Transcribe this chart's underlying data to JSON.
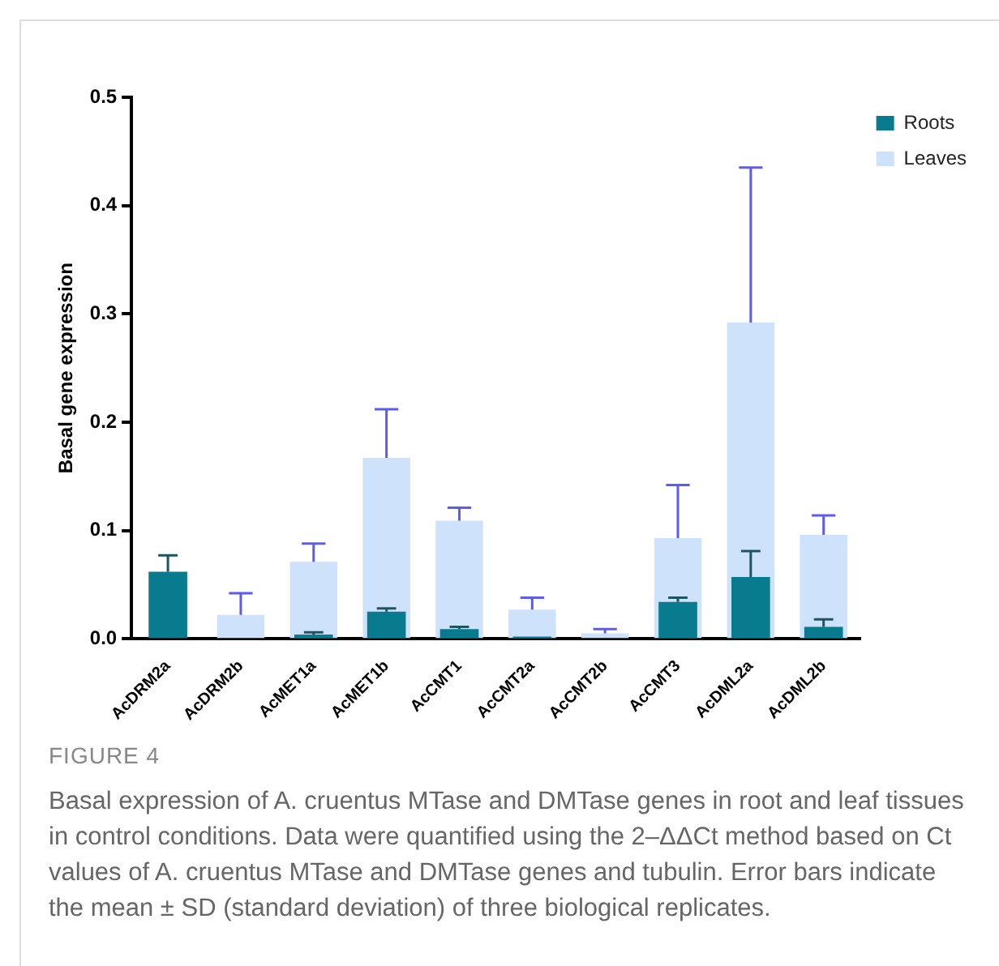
{
  "chart_data": {
    "type": "bar",
    "ylabel": "Basal gene expression",
    "categories": [
      "AcDRM2a",
      "AcDRM2b",
      "AcMET1a",
      "AcMET1b",
      "AcCMT1",
      "AcCMT2a",
      "AcCMT2b",
      "AcCMT3",
      "AcDML2a",
      "AcDML2b"
    ],
    "series": [
      {
        "name": "Roots",
        "color": "#087b8f",
        "values": [
          0.062,
          null,
          0.004,
          0.025,
          0.009,
          0.002,
          null,
          0.034,
          0.057,
          0.011
        ],
        "errors": [
          [
            0.062,
            0.077
          ],
          null,
          [
            0.004,
            0.006
          ],
          [
            0.025,
            0.028
          ],
          [
            0.009,
            0.011
          ],
          null,
          null,
          [
            0.034,
            0.038
          ],
          [
            0.057,
            0.081
          ],
          [
            0.011,
            0.018
          ]
        ]
      },
      {
        "name": "Leaves",
        "color": "#cfe2fb",
        "values": [
          null,
          0.022,
          0.071,
          0.167,
          0.109,
          0.027,
          0.005,
          0.093,
          0.292,
          0.096
        ],
        "errors": [
          null,
          [
            0.022,
            0.042
          ],
          [
            0.071,
            0.088
          ],
          [
            0.167,
            0.212
          ],
          [
            0.109,
            0.121
          ],
          [
            0.027,
            0.038
          ],
          [
            0.005,
            0.009
          ],
          [
            0.093,
            0.142
          ],
          [
            0.292,
            0.435
          ],
          [
            0.096,
            0.114
          ]
        ]
      }
    ],
    "ylim": [
      0,
      0.5
    ],
    "yticks": [
      {
        "value": 0,
        "label": "0.0"
      },
      {
        "value": 0.1,
        "label": "0.1"
      },
      {
        "value": 0.2,
        "label": "0.2"
      },
      {
        "value": 0.3,
        "label": "0.3"
      },
      {
        "value": 0.4,
        "label": "0.4"
      },
      {
        "value": 0.5,
        "label": "0.5"
      }
    ],
    "grid": false,
    "legend": "top right",
    "annotations": [
      "FIGURE 4",
      "Basal expression of A. cruentus MTase and DMTase genes in root and leaf tissues in control conditions. Data were quantified using the 2–ΔΔCt method based on Ct values of A. cruentus MTase and DMTase genes and tubulin. Error bars indicate the mean ± SD (standard deviation) of three biological replicates."
    ]
  }
}
